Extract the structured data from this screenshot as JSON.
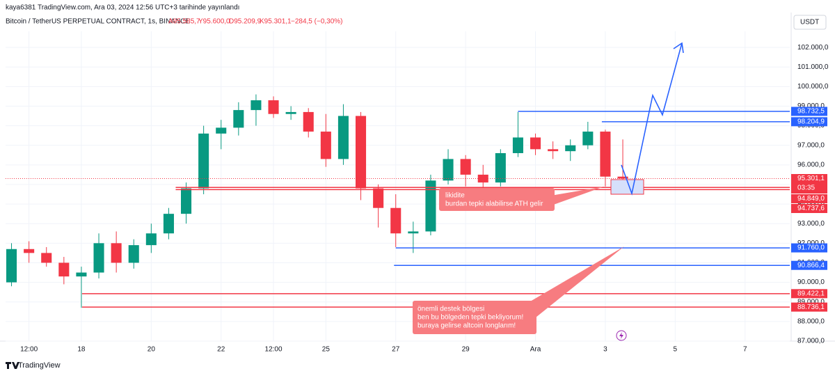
{
  "header": {
    "published": "kaya6381 TradingView.com, Ara 03, 2024 12:56 UTC+3 tarihinde yayınlandı",
    "symbol": "Bitcoin / TetherUS PERPETUAL CONTRACT, 1s, BINANCE",
    "open": "A95.585,7",
    "high": "Y95.600,0",
    "low": "D95.209,9",
    "close": "K95.301,1",
    "change": "−284,5 (−0,30%)"
  },
  "currency": "USDT",
  "brand": "TradingView",
  "chart_data": {
    "type": "candlestick",
    "x": [
      -2,
      -1.5,
      -1,
      -0.5,
      0,
      0.5,
      1,
      1.5,
      2,
      2.5,
      3,
      3.5,
      4,
      4.5,
      5,
      5.5,
      6,
      6.5,
      7,
      7.5,
      8,
      8.5,
      9,
      9.5,
      10,
      10.5,
      11,
      11.5,
      12,
      12.5,
      13,
      13.5,
      14,
      14.5,
      15,
      15.5
    ],
    "open": [
      90000,
      91700,
      91500,
      91000,
      90300,
      90500,
      92000,
      91000,
      91900,
      92500,
      93500,
      94800,
      97600,
      97900,
      98800,
      99300,
      98600,
      98700,
      97700,
      96300,
      98500,
      94800,
      93800,
      92500,
      92600,
      95200,
      96300,
      95500,
      95100,
      96600,
      97400,
      96800,
      96700,
      97000,
      97700,
      95400
    ],
    "high": [
      92000,
      92100,
      91800,
      91300,
      90800,
      92500,
      92600,
      92200,
      93000,
      93800,
      95100,
      98000,
      98300,
      99200,
      99600,
      99500,
      99000,
      98900,
      98600,
      99100,
      98700,
      95000,
      94500,
      93100,
      95500,
      96800,
      96500,
      96000,
      96800,
      98700,
      97600,
      97200,
      97300,
      98200,
      97800,
      97300
    ],
    "low": [
      89800,
      91000,
      90800,
      89900,
      88700,
      90200,
      90500,
      90700,
      91500,
      92200,
      93000,
      94500,
      96800,
      97500,
      98000,
      98400,
      98300,
      97400,
      95900,
      96000,
      94200,
      92800,
      91800,
      91500,
      92400,
      95000,
      94900,
      94700,
      94900,
      96400,
      96500,
      96300,
      96200,
      96800,
      94900,
      94800
    ],
    "close": [
      91700,
      91500,
      91000,
      90300,
      90500,
      92000,
      91000,
      91900,
      92500,
      93500,
      94800,
      97600,
      97900,
      98800,
      99300,
      98600,
      98700,
      97700,
      96300,
      98500,
      94800,
      93800,
      92500,
      92600,
      95200,
      96300,
      95500,
      95100,
      96600,
      97400,
      96800,
      96700,
      97000,
      97700,
      95400,
      95301.1
    ],
    "up_color": "#089981",
    "down_color": "#f23645",
    "xlim": [
      -2.17,
      20.28
    ],
    "xticks": [
      {
        "value": -1.5,
        "label": "12:00"
      },
      {
        "value": 0,
        "label": "18"
      },
      {
        "value": 2,
        "label": "20"
      },
      {
        "value": 4,
        "label": "22"
      },
      {
        "value": 5.5,
        "label": "12:00"
      },
      {
        "value": 7,
        "label": "25"
      },
      {
        "value": 9,
        "label": "27"
      },
      {
        "value": 11,
        "label": "29"
      },
      {
        "value": 13,
        "label": "Ara"
      },
      {
        "value": 15,
        "label": "3"
      },
      {
        "value": 17,
        "label": "5"
      },
      {
        "value": 19,
        "label": "7"
      }
    ],
    "ylim": [
      86500,
      103000
    ],
    "yticks": [
      {
        "value": 87000,
        "label": "87.000,0"
      },
      {
        "value": 88000,
        "label": "88.000,0"
      },
      {
        "value": 89000,
        "label": "89.000,0"
      },
      {
        "value": 90000,
        "label": "90.000,0"
      },
      {
        "value": 91000,
        "label": "91.000,0"
      },
      {
        "value": 92000,
        "label": "92.000,0"
      },
      {
        "value": 93000,
        "label": "93.000,0"
      },
      {
        "value": 94000,
        "label": "94.000,0"
      },
      {
        "value": 95000,
        "label": "95.000,0"
      },
      {
        "value": 96000,
        "label": "96.000,0"
      },
      {
        "value": 97000,
        "label": "97.000,0"
      },
      {
        "value": 98000,
        "label": "98.000,0"
      },
      {
        "value": 99000,
        "label": "99.000,0"
      },
      {
        "value": 100000,
        "label": "100.000,0"
      },
      {
        "value": 101000,
        "label": "101.000,0"
      },
      {
        "value": 102000,
        "label": "102.000,0"
      }
    ],
    "last_price": {
      "value": 95301.1,
      "label": "95.301,1",
      "countdown": "03:35",
      "color": "#f23645"
    },
    "levels": [
      {
        "value": 98732.5,
        "label": "98.732,5",
        "color": "#2962ff",
        "start": 12.5
      },
      {
        "value": 98204.9,
        "label": "98.204,9",
        "color": "#2962ff",
        "start": 14.9
      },
      {
        "value": 94849.0,
        "label": "94.849,0",
        "color": "#f23645",
        "start": 2.7
      },
      {
        "value": 94737.6,
        "label": "94.737,6",
        "color": "#f23645",
        "start": 2.7
      },
      {
        "value": 91760.0,
        "label": "91.760,0",
        "color": "#2962ff",
        "start": 9.0
      },
      {
        "value": 90866.4,
        "label": "90.866,4",
        "color": "#2962ff",
        "start": 8.95
      },
      {
        "value": 89422.1,
        "label": "89.422,1",
        "color": "#f23645",
        "start": 0.02
      },
      {
        "value": 88736.1,
        "label": "88.736,1",
        "color": "#f23645",
        "start": 0.02
      }
    ],
    "annotations": [
      {
        "lines": [
          "likidite",
          "burdan tepki alabilirse ATH gelir"
        ]
      },
      {
        "lines": [
          "önemli destek bölgesi",
          "ben bu bölgeden tepki bekliyorum!",
          "buraya gelirse altcoin longlarım!"
        ]
      }
    ]
  }
}
